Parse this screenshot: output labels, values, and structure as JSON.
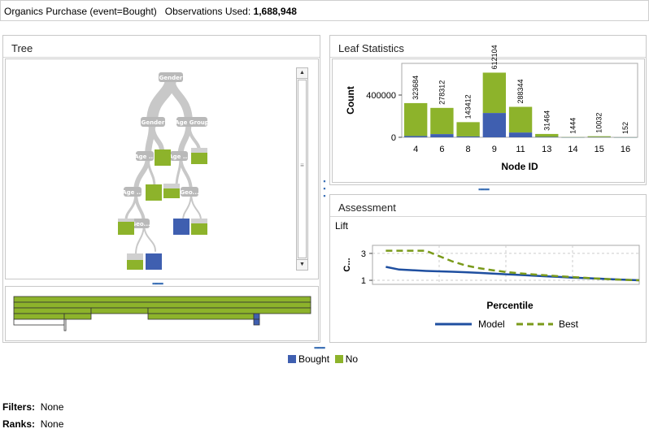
{
  "header": {
    "title": "Organics Purchase (event=Bought)",
    "obs_label": "Observations Used:",
    "obs_value": "1,688,948"
  },
  "tree_panel": {
    "title": "Tree",
    "node_labels": {
      "root": "Gender",
      "l1_left": "Gender",
      "l1_right": "Age Group",
      "l2_left": "Age ...",
      "l2_right": "Age ...",
      "l3_left": "Age ...",
      "l3_right": "Geo...",
      "l4_left": "Geo..."
    }
  },
  "leaf_panel": {
    "title": "Leaf Statistics",
    "chart_data": {
      "type": "bar",
      "xlabel": "Node ID",
      "ylabel": "Count",
      "categories": [
        "4",
        "6",
        "8",
        "9",
        "11",
        "13",
        "14",
        "15",
        "16"
      ],
      "series": [
        {
          "name": "Bought",
          "values": [
            12000,
            30000,
            8000,
            230000,
            45000,
            4000,
            200,
            1500,
            20
          ]
        },
        {
          "name": "No",
          "values": [
            311684,
            248312,
            135412,
            382104,
            243344,
            27464,
            1244,
            8532,
            132
          ]
        }
      ],
      "totals_labels": [
        "323684",
        "278312",
        "143412",
        "612104",
        "288344",
        "31464",
        "1444",
        "10032",
        "152"
      ],
      "y_ticks": [
        "400000",
        "0"
      ],
      "ylim": [
        0,
        700000
      ]
    }
  },
  "assessment_panel": {
    "title": "Assessment",
    "subtitle": "Lift",
    "chart_data": {
      "type": "line",
      "xlabel": "Percentile",
      "ylabel": "C...",
      "y_ticks": [
        "3",
        "1"
      ],
      "ylim": [
        0.7,
        3.6
      ],
      "x": [
        5,
        10,
        15,
        20,
        25,
        30,
        35,
        40,
        45,
        50,
        55,
        60,
        65,
        70,
        75,
        80,
        85,
        90,
        95,
        100
      ],
      "series": [
        {
          "name": "Model",
          "values": [
            2.0,
            1.8,
            1.75,
            1.7,
            1.67,
            1.64,
            1.6,
            1.55,
            1.5,
            1.45,
            1.4,
            1.35,
            1.3,
            1.25,
            1.2,
            1.16,
            1.12,
            1.08,
            1.04,
            1.0
          ]
        },
        {
          "name": "Best",
          "values": [
            3.2,
            3.2,
            3.2,
            3.2,
            2.8,
            2.4,
            2.1,
            1.9,
            1.75,
            1.62,
            1.52,
            1.44,
            1.37,
            1.3,
            1.24,
            1.18,
            1.12,
            1.07,
            1.03,
            1.0
          ]
        }
      ]
    },
    "legend": [
      "Model",
      "Best"
    ]
  },
  "legend": {
    "items": [
      {
        "label": "Bought",
        "color": "#3f5fb0"
      },
      {
        "label": "No",
        "color": "#8db32b"
      }
    ]
  },
  "footer": {
    "filters_label": "Filters:",
    "filters_value": "None",
    "ranks_label": "Ranks:",
    "ranks_value": "None"
  },
  "colors": {
    "bought": "#3f5fb0",
    "no": "#8db32b",
    "model_line": "#1f4fa0",
    "best_line": "#7a9a1a"
  },
  "icons": {
    "scroll_up": "triangle-up-icon",
    "scroll_down": "triangle-down-icon",
    "splitter": "grip-dots-icon"
  }
}
